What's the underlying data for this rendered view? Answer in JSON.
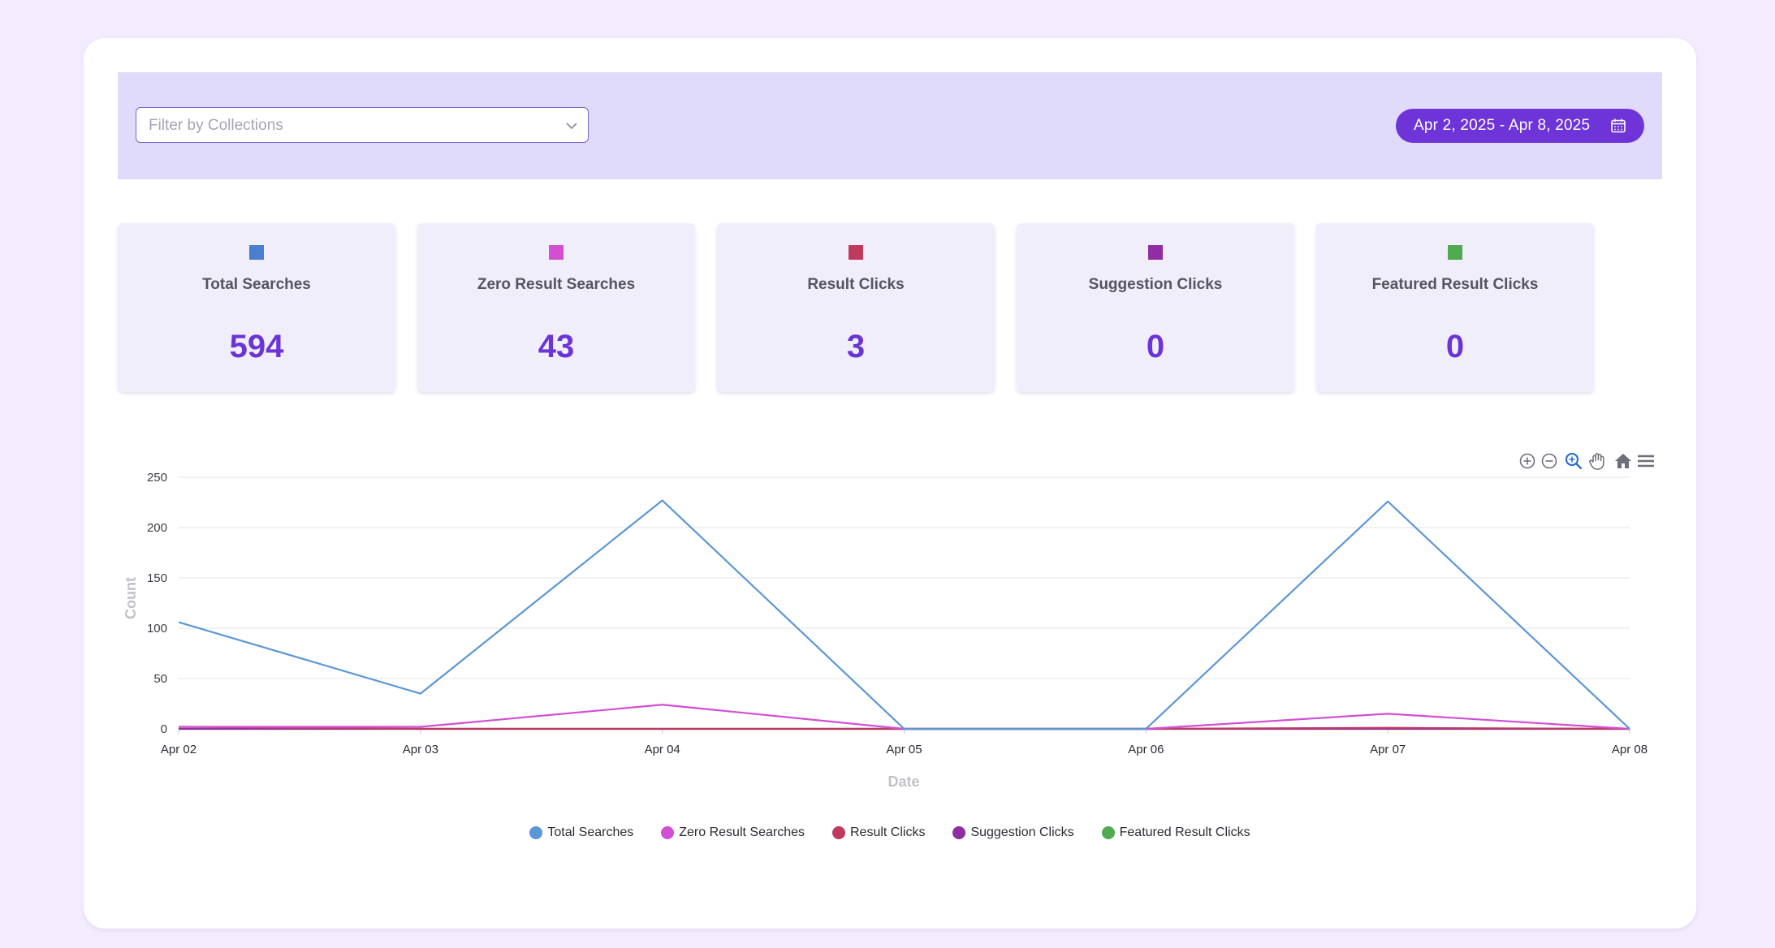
{
  "filters": {
    "collection_placeholder": "Filter by Collections",
    "date_range": "Apr 2, 2025 - Apr 8, 2025"
  },
  "stats": [
    {
      "label": "Total Searches",
      "value": "594",
      "color": "#4a7fcd"
    },
    {
      "label": "Zero Result Searches",
      "value": "43",
      "color": "#d24fd4"
    },
    {
      "label": "Result Clicks",
      "value": "3",
      "color": "#c0395f"
    },
    {
      "label": "Suggestion Clicks",
      "value": "0",
      "color": "#8e2ea2"
    },
    {
      "label": "Featured Result Clicks",
      "value": "0",
      "color": "#4faa50"
    }
  ],
  "toolbar": [
    "zoom-in-icon",
    "zoom-out-icon",
    "selection-zoom-icon",
    "pan-icon",
    "home-icon",
    "menu-icon"
  ],
  "chart_data": {
    "type": "line",
    "xlabel": "Date",
    "ylabel": "Count",
    "ylim": [
      0,
      250
    ],
    "yticks": [
      0,
      50,
      100,
      150,
      200,
      250
    ],
    "categories": [
      "Apr 02",
      "Apr 03",
      "Apr 04",
      "Apr 05",
      "Apr 06",
      "Apr 07",
      "Apr 08"
    ],
    "grid": true,
    "legend_position": "bottom",
    "series": [
      {
        "name": "Total Searches",
        "color": "#5b96d6",
        "values": [
          106,
          35,
          227,
          0,
          0,
          226,
          0
        ]
      },
      {
        "name": "Zero Result Searches",
        "color": "#d24fd4",
        "values": [
          2,
          2,
          24,
          0,
          0,
          15,
          0
        ]
      },
      {
        "name": "Result Clicks",
        "color": "#c0395f",
        "values": [
          2,
          0,
          0,
          0,
          0,
          1,
          0
        ]
      },
      {
        "name": "Suggestion Clicks",
        "color": "#8e2ea2",
        "values": [
          0,
          0,
          0,
          0,
          0,
          0,
          0
        ]
      },
      {
        "name": "Featured Result Clicks",
        "color": "#4faa50",
        "values": [
          0,
          0,
          0,
          0,
          0,
          0,
          0
        ]
      }
    ]
  }
}
